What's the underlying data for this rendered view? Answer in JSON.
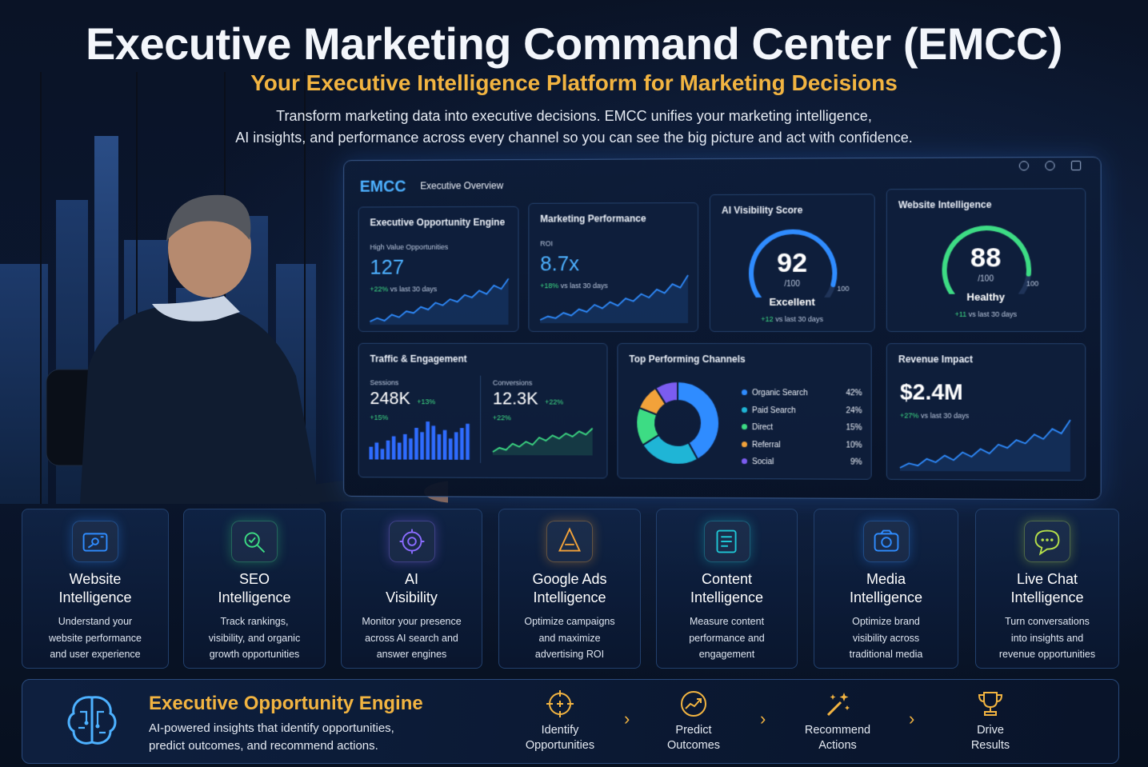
{
  "header": {
    "title": "Executive Marketing Command Center (EMCC)",
    "subtitle": "Your Executive Intelligence Platform for Marketing Decisions",
    "description_line1": "Transform marketing data into executive decisions. EMCC unifies your marketing intelligence,",
    "description_line2": "AI insights, and performance across every channel so you can see the big picture and act with confidence."
  },
  "dashboard": {
    "brand": "EMCC",
    "tab": "Executive Overview",
    "opportunity": {
      "title": "Executive Opportunity Engine",
      "label": "High Value Opportunities",
      "value": "127",
      "delta": "+22%",
      "delta_note": "vs last 30 days",
      "trend": [
        30,
        34,
        31,
        38,
        35,
        42,
        40,
        47,
        44,
        52,
        49,
        56,
        53,
        61,
        58,
        66,
        62,
        72,
        68,
        80
      ]
    },
    "marketing": {
      "title": "Marketing Performance",
      "label": "ROI",
      "value": "8.7x",
      "delta": "+18%",
      "delta_note": "vs last 30 days",
      "trend": [
        28,
        32,
        30,
        36,
        33,
        40,
        37,
        45,
        41,
        48,
        44,
        52,
        49,
        57,
        53,
        62,
        58,
        68,
        64,
        78
      ]
    },
    "ai_visibility": {
      "title": "AI Visibility Score",
      "score": "92",
      "out_of": "/100",
      "max_label": "100",
      "status": "Excellent",
      "delta": "+12",
      "delta_note": "vs last 30 days",
      "value": 92
    },
    "website": {
      "title": "Website Intelligence",
      "score": "88",
      "out_of": "/100",
      "max_label": "100",
      "status": "Healthy",
      "delta": "+11",
      "delta_note": "vs last 30 days",
      "value": 88
    },
    "traffic": {
      "title": "Traffic & Engagement",
      "sessions_label": "Sessions",
      "sessions": "248K",
      "sessions_delta": "+13%",
      "sessions_delta2": "+15%",
      "conversions_label": "Conversions",
      "conversions": "12.3K",
      "conversions_delta": "+22%",
      "conversions_delta2": "+22%",
      "bars": [
        6,
        8,
        5,
        9,
        11,
        8,
        12,
        10,
        15,
        13,
        18,
        16,
        12,
        14,
        10,
        13,
        15,
        17
      ],
      "line": [
        10,
        14,
        12,
        18,
        15,
        20,
        17,
        24,
        21,
        26,
        23,
        28,
        25,
        30,
        27,
        33
      ]
    },
    "channels": {
      "title": "Top Performing Channels",
      "items": [
        {
          "name": "Organic Search",
          "pct": "42%",
          "value": 42,
          "color": "#2f8cff"
        },
        {
          "name": "Paid Search",
          "pct": "24%",
          "value": 24,
          "color": "#1fb5d6"
        },
        {
          "name": "Direct",
          "pct": "15%",
          "value": 15,
          "color": "#3ddc84"
        },
        {
          "name": "Referral",
          "pct": "10%",
          "value": 10,
          "color": "#f2a23a"
        },
        {
          "name": "Social",
          "pct": "9%",
          "value": 9,
          "color": "#7b5cf0"
        }
      ]
    },
    "revenue": {
      "title": "Revenue Impact",
      "value": "$2.4M",
      "delta": "+27%",
      "delta_note": "vs last 30 days",
      "trend": [
        20,
        24,
        22,
        28,
        25,
        31,
        27,
        34,
        30,
        37,
        33,
        41,
        38,
        45,
        42,
        50,
        46,
        55,
        51,
        63
      ]
    }
  },
  "features": [
    {
      "title_1": "Website",
      "title_2": "Intelligence",
      "desc_1": "Understand your",
      "desc_2": "website performance",
      "desc_3": "and user experience",
      "icon": "website-icon",
      "color": "#2f8cff"
    },
    {
      "title_1": "SEO",
      "title_2": "Intelligence",
      "desc_1": "Track rankings,",
      "desc_2": "visibility, and organic",
      "desc_3": "growth opportunities",
      "icon": "seo-icon",
      "color": "#3ddc84"
    },
    {
      "title_1": "AI",
      "title_2": "Visibility",
      "desc_1": "Monitor your presence",
      "desc_2": "across AI search and",
      "desc_3": "answer engines",
      "icon": "ai-target-icon",
      "color": "#8a6cff"
    },
    {
      "title_1": "Google Ads",
      "title_2": "Intelligence",
      "desc_1": "Optimize campaigns",
      "desc_2": "and maximize",
      "desc_3": "advertising ROI",
      "icon": "ads-icon",
      "color": "#f2a23a"
    },
    {
      "title_1": "Content",
      "title_2": "Intelligence",
      "desc_1": "Measure content",
      "desc_2": "performance and",
      "desc_3": "engagement",
      "icon": "content-icon",
      "color": "#1fc7d6"
    },
    {
      "title_1": "Media",
      "title_2": "Intelligence",
      "desc_1": "Optimize brand",
      "desc_2": "visibility across",
      "desc_3": "traditional media",
      "icon": "media-icon",
      "color": "#2f8cff"
    },
    {
      "title_1": "Live Chat",
      "title_2": "Intelligence",
      "desc_1": "Turn conversations",
      "desc_2": "into insights and",
      "desc_3": "revenue opportunities",
      "icon": "chat-icon",
      "color": "#b6e04a"
    }
  ],
  "engine": {
    "title": "Executive Opportunity Engine",
    "desc_1": "AI-powered insights that identify opportunities,",
    "desc_2": "predict outcomes, and recommend actions.",
    "steps": [
      {
        "line1": "Identify",
        "line2": "Opportunities",
        "icon": "crosshair-icon"
      },
      {
        "line1": "Predict",
        "line2": "Outcomes",
        "icon": "trend-gauge-icon"
      },
      {
        "line1": "Recommend",
        "line2": "Actions",
        "icon": "magic-wand-icon"
      },
      {
        "line1": "Drive",
        "line2": "Results",
        "icon": "trophy-icon"
      }
    ]
  },
  "colors": {
    "accent": "#4db1ff",
    "gold": "#f2b441",
    "positive": "#3ddc84"
  }
}
